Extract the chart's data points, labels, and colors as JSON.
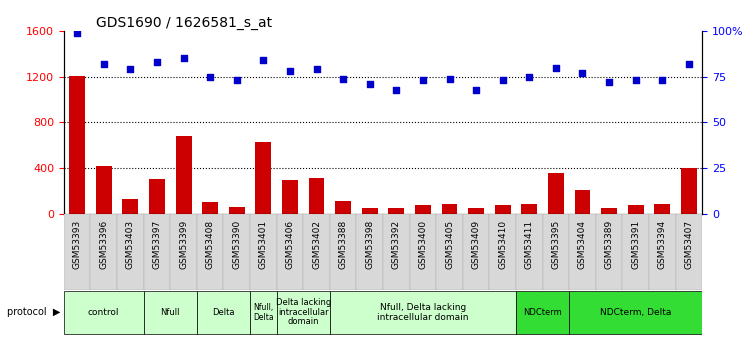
{
  "title": "GDS1690 / 1626581_s_at",
  "samples": [
    "GSM53393",
    "GSM53396",
    "GSM53403",
    "GSM53397",
    "GSM53399",
    "GSM53408",
    "GSM53390",
    "GSM53401",
    "GSM53406",
    "GSM53402",
    "GSM53388",
    "GSM53398",
    "GSM53392",
    "GSM53400",
    "GSM53405",
    "GSM53409",
    "GSM53410",
    "GSM53411",
    "GSM53395",
    "GSM53404",
    "GSM53389",
    "GSM53391",
    "GSM53394",
    "GSM53407"
  ],
  "counts": [
    1210,
    420,
    130,
    305,
    680,
    105,
    60,
    630,
    300,
    315,
    110,
    55,
    55,
    75,
    90,
    50,
    75,
    90,
    360,
    205,
    55,
    80,
    90,
    400
  ],
  "percentile": [
    99,
    82,
    79,
    83,
    85,
    75,
    73,
    84,
    78,
    79,
    74,
    71,
    68,
    73,
    74,
    68,
    73,
    75,
    80,
    77,
    72,
    73,
    73,
    82
  ],
  "protocols": [
    {
      "label": "control",
      "start": 0,
      "end": 3,
      "color": "#ccffcc"
    },
    {
      "label": "Nfull",
      "start": 3,
      "end": 5,
      "color": "#ccffcc"
    },
    {
      "label": "Delta",
      "start": 5,
      "end": 7,
      "color": "#ccffcc"
    },
    {
      "label": "Nfull,\nDelta",
      "start": 7,
      "end": 8,
      "color": "#ccffcc"
    },
    {
      "label": "Delta lacking\nintracellular\ndomain",
      "start": 8,
      "end": 10,
      "color": "#ccffcc"
    },
    {
      "label": "Nfull, Delta lacking\nintracellular domain",
      "start": 10,
      "end": 17,
      "color": "#ccffcc"
    },
    {
      "label": "NDCterm",
      "start": 17,
      "end": 19,
      "color": "#33dd33"
    },
    {
      "label": "NDCterm, Delta",
      "start": 19,
      "end": 24,
      "color": "#33dd33"
    }
  ],
  "bar_color": "#cc0000",
  "dot_color": "#0000cc",
  "ylim_left": [
    0,
    1600
  ],
  "ylim_right": [
    0,
    100
  ],
  "yticks_left": [
    0,
    400,
    800,
    1200,
    1600
  ],
  "yticks_right": [
    0,
    25,
    50,
    75,
    100
  ],
  "ytick_labels_right": [
    "0",
    "25",
    "50",
    "75",
    "100%"
  ],
  "hlines": [
    400,
    800,
    1200
  ]
}
